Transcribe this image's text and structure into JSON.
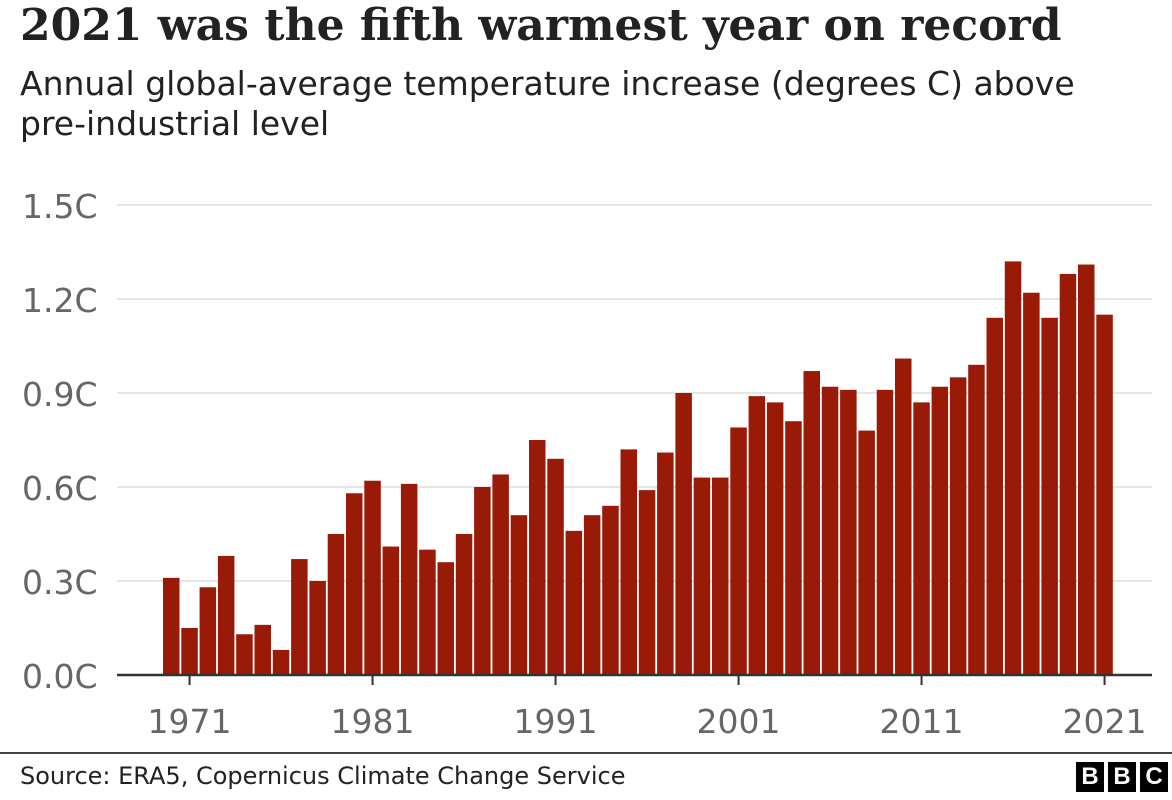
{
  "title": "2021 was the fifth warmest year on record",
  "subtitle": "Annual global-average temperature increase (degrees C) above pre-industrial level",
  "source": "Source: ERA5, Copernicus Climate Change Service",
  "logo": {
    "text": "BBC",
    "letters": [
      "B",
      "B",
      "C"
    ]
  },
  "colors": {
    "bar": "#9a1a08",
    "grid": "#dddddd",
    "axis": "#333333",
    "tick_text": "#666666"
  },
  "chart_data": {
    "type": "bar",
    "title": "2021 was the fifth warmest year on record",
    "subtitle": "Annual global-average temperature increase (degrees C) above pre-industrial level",
    "xlabel": "",
    "ylabel": "",
    "ylim": [
      0,
      1.5
    ],
    "yticks": [
      0,
      0.3,
      0.6,
      0.9,
      1.2,
      1.5
    ],
    "ytick_labels": [
      "0.0C",
      "0.3C",
      "0.6C",
      "0.9C",
      "1.2C",
      "1.5C"
    ],
    "xticks": [
      1971,
      1981,
      1991,
      2001,
      2011,
      2021
    ],
    "xtick_labels": [
      "1971",
      "1981",
      "1991",
      "2001",
      "2011",
      "2021"
    ],
    "grid": true,
    "legend": "none",
    "categories": [
      1970,
      1971,
      1972,
      1973,
      1974,
      1975,
      1976,
      1977,
      1978,
      1979,
      1980,
      1981,
      1982,
      1983,
      1984,
      1985,
      1986,
      1987,
      1988,
      1989,
      1990,
      1991,
      1992,
      1993,
      1994,
      1995,
      1996,
      1997,
      1998,
      1999,
      2000,
      2001,
      2002,
      2003,
      2004,
      2005,
      2006,
      2007,
      2008,
      2009,
      2010,
      2011,
      2012,
      2013,
      2014,
      2015,
      2016,
      2017,
      2018,
      2019,
      2020,
      2021
    ],
    "values": [
      0.31,
      0.15,
      0.28,
      0.38,
      0.13,
      0.16,
      0.08,
      0.37,
      0.3,
      0.45,
      0.58,
      0.62,
      0.41,
      0.61,
      0.4,
      0.36,
      0.45,
      0.6,
      0.64,
      0.51,
      0.75,
      0.69,
      0.46,
      0.51,
      0.54,
      0.72,
      0.59,
      0.71,
      0.9,
      0.63,
      0.63,
      0.79,
      0.89,
      0.87,
      0.81,
      0.97,
      0.92,
      0.91,
      0.78,
      0.91,
      1.01,
      0.87,
      0.92,
      0.95,
      0.99,
      1.14,
      1.32,
      1.22,
      1.14,
      1.28,
      1.31,
      1.15
    ]
  }
}
